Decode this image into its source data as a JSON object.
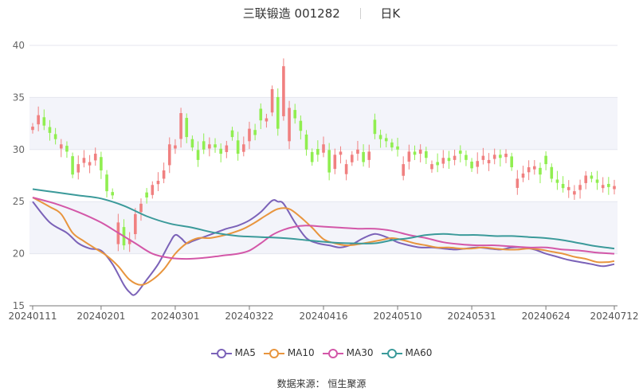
{
  "header": {
    "title": "三联锻造 001282",
    "period": "日K"
  },
  "source_label": "数据来源：  恒生聚源",
  "colors": {
    "up": "#f08080",
    "down": "#90ee50",
    "MA5": "#7b62b8",
    "MA10": "#e8953e",
    "MA30": "#d357a8",
    "MA60": "#3b9a9a"
  },
  "chart_data": {
    "type": "candlestick",
    "y_axis": {
      "min": 15,
      "max": 40,
      "ticks": [
        15,
        20,
        25,
        30,
        35,
        40
      ]
    },
    "x_tick_labels": [
      "20240111",
      "20240201",
      "20240301",
      "20240322",
      "20240416",
      "20240510",
      "20240531",
      "20240624",
      "20240712"
    ],
    "x_tick_index": [
      0,
      12,
      25,
      38,
      51,
      64,
      77,
      90,
      102
    ],
    "legend": [
      "MA5",
      "MA10",
      "MA30",
      "MA60"
    ],
    "closes": [
      32.2,
      33.3,
      32.3,
      31.6,
      31.0,
      30.5,
      29.8,
      27.6,
      28.6,
      29.2,
      28.8,
      29.6,
      28.0,
      26.0,
      25.6,
      23.0,
      20.8,
      21.4,
      23.8,
      24.8,
      25.4,
      26.6,
      27.0,
      28.0,
      30.5,
      30.4,
      33.5,
      31.2,
      30.2,
      29.0,
      30.0,
      30.5,
      30.2,
      29.6,
      30.4,
      31.2,
      29.6,
      30.5,
      32.0,
      31.4,
      32.8,
      33.0,
      35.8,
      32.0,
      38.0,
      34.0,
      33.0,
      31.8,
      30.0,
      28.8,
      29.5,
      30.5,
      27.8,
      29.5,
      29.8,
      28.6,
      29.5,
      30.0,
      28.8,
      29.8,
      31.5,
      31.0,
      30.8,
      30.2,
      30.0,
      28.6,
      29.8,
      29.5,
      30.0,
      29.2,
      28.6,
      28.5,
      29.2,
      28.9,
      29.4,
      29.6,
      29.0,
      28.2,
      28.9,
      29.4,
      29.0,
      29.5,
      29.2,
      29.6,
      28.3,
      27.2,
      27.7,
      28.3,
      28.4,
      27.6,
      28.6,
      27.2,
      26.8,
      26.3,
      26.4,
      26.0,
      26.6,
      27.5,
      27.2,
      26.8,
      26.6,
      26.4,
      26.5
    ],
    "ma_curves": {
      "MA5": [
        [
          0,
          25.0
        ],
        [
          3,
          23.0
        ],
        [
          6,
          22.0
        ],
        [
          8,
          21.0
        ],
        [
          10,
          20.5
        ],
        [
          12,
          20.3
        ],
        [
          14,
          19.0
        ],
        [
          16,
          17.0
        ],
        [
          17,
          16.3
        ],
        [
          18,
          16.1
        ],
        [
          20,
          17.5
        ],
        [
          22,
          19.0
        ],
        [
          24,
          21.0
        ],
        [
          25,
          21.8
        ],
        [
          26,
          21.5
        ],
        [
          27,
          21.0
        ],
        [
          28,
          21.2
        ],
        [
          30,
          21.6
        ],
        [
          32,
          22.0
        ],
        [
          34,
          22.4
        ],
        [
          36,
          22.7
        ],
        [
          38,
          23.2
        ],
        [
          40,
          24.0
        ],
        [
          42,
          25.1
        ],
        [
          43,
          25.0
        ],
        [
          44,
          24.8
        ],
        [
          46,
          23.0
        ],
        [
          48,
          21.5
        ],
        [
          50,
          21.0
        ],
        [
          52,
          20.8
        ],
        [
          54,
          20.6
        ],
        [
          56,
          20.9
        ],
        [
          58,
          21.5
        ],
        [
          60,
          21.9
        ],
        [
          62,
          21.6
        ],
        [
          64,
          21.1
        ],
        [
          66,
          20.8
        ],
        [
          68,
          20.6
        ],
        [
          70,
          20.6
        ],
        [
          72,
          20.5
        ],
        [
          74,
          20.4
        ],
        [
          76,
          20.5
        ],
        [
          78,
          20.6
        ],
        [
          80,
          20.5
        ],
        [
          82,
          20.4
        ],
        [
          84,
          20.6
        ],
        [
          86,
          20.6
        ],
        [
          88,
          20.4
        ],
        [
          90,
          20.0
        ],
        [
          92,
          19.7
        ],
        [
          94,
          19.4
        ],
        [
          96,
          19.2
        ],
        [
          98,
          19.0
        ],
        [
          100,
          18.8
        ],
        [
          102,
          19.0
        ]
      ],
      "MA10": [
        [
          0,
          25.4
        ],
        [
          3,
          24.5
        ],
        [
          5,
          23.8
        ],
        [
          7,
          22.0
        ],
        [
          9,
          21.2
        ],
        [
          11,
          20.5
        ],
        [
          13,
          19.8
        ],
        [
          15,
          18.8
        ],
        [
          17,
          17.5
        ],
        [
          19,
          17.0
        ],
        [
          21,
          17.5
        ],
        [
          23,
          18.5
        ],
        [
          25,
          20.0
        ],
        [
          27,
          21.0
        ],
        [
          29,
          21.5
        ],
        [
          31,
          21.5
        ],
        [
          33,
          21.7
        ],
        [
          35,
          22.0
        ],
        [
          37,
          22.4
        ],
        [
          39,
          23.0
        ],
        [
          41,
          23.7
        ],
        [
          43,
          24.3
        ],
        [
          45,
          24.3
        ],
        [
          47,
          23.5
        ],
        [
          49,
          22.5
        ],
        [
          51,
          21.4
        ],
        [
          53,
          21.0
        ],
        [
          55,
          20.8
        ],
        [
          57,
          20.9
        ],
        [
          59,
          21.1
        ],
        [
          61,
          21.3
        ],
        [
          63,
          21.5
        ],
        [
          65,
          21.3
        ],
        [
          67,
          21.0
        ],
        [
          69,
          20.8
        ],
        [
          71,
          20.6
        ],
        [
          73,
          20.6
        ],
        [
          75,
          20.5
        ],
        [
          77,
          20.5
        ],
        [
          79,
          20.6
        ],
        [
          81,
          20.5
        ],
        [
          83,
          20.4
        ],
        [
          85,
          20.4
        ],
        [
          87,
          20.5
        ],
        [
          89,
          20.4
        ],
        [
          91,
          20.2
        ],
        [
          93,
          20.0
        ],
        [
          95,
          19.7
        ],
        [
          97,
          19.5
        ],
        [
          99,
          19.2
        ],
        [
          101,
          19.2
        ],
        [
          102,
          19.3
        ]
      ],
      "MA30": [
        [
          0,
          25.4
        ],
        [
          4,
          24.8
        ],
        [
          8,
          24.0
        ],
        [
          12,
          23.0
        ],
        [
          15,
          22.0
        ],
        [
          18,
          21.0
        ],
        [
          21,
          20.0
        ],
        [
          24,
          19.6
        ],
        [
          27,
          19.5
        ],
        [
          30,
          19.6
        ],
        [
          33,
          19.8
        ],
        [
          36,
          20.0
        ],
        [
          38,
          20.3
        ],
        [
          40,
          21.0
        ],
        [
          42,
          21.8
        ],
        [
          44,
          22.3
        ],
        [
          46,
          22.6
        ],
        [
          48,
          22.7
        ],
        [
          51,
          22.6
        ],
        [
          54,
          22.5
        ],
        [
          57,
          22.4
        ],
        [
          60,
          22.4
        ],
        [
          63,
          22.2
        ],
        [
          66,
          21.8
        ],
        [
          69,
          21.5
        ],
        [
          72,
          21.1
        ],
        [
          75,
          20.9
        ],
        [
          78,
          20.8
        ],
        [
          81,
          20.8
        ],
        [
          84,
          20.7
        ],
        [
          87,
          20.6
        ],
        [
          90,
          20.6
        ],
        [
          93,
          20.4
        ],
        [
          96,
          20.3
        ],
        [
          99,
          20.1
        ],
        [
          102,
          20.0
        ]
      ],
      "MA60": [
        [
          0,
          26.2
        ],
        [
          4,
          25.9
        ],
        [
          8,
          25.6
        ],
        [
          12,
          25.3
        ],
        [
          16,
          24.6
        ],
        [
          20,
          23.6
        ],
        [
          24,
          22.9
        ],
        [
          28,
          22.5
        ],
        [
          32,
          22.0
        ],
        [
          36,
          21.7
        ],
        [
          40,
          21.6
        ],
        [
          44,
          21.5
        ],
        [
          48,
          21.3
        ],
        [
          52,
          21.1
        ],
        [
          56,
          21.0
        ],
        [
          60,
          21.0
        ],
        [
          63,
          21.3
        ],
        [
          66,
          21.5
        ],
        [
          69,
          21.8
        ],
        [
          72,
          21.9
        ],
        [
          75,
          21.8
        ],
        [
          78,
          21.8
        ],
        [
          81,
          21.7
        ],
        [
          84,
          21.7
        ],
        [
          87,
          21.6
        ],
        [
          90,
          21.5
        ],
        [
          93,
          21.3
        ],
        [
          96,
          21.0
        ],
        [
          99,
          20.7
        ],
        [
          102,
          20.5
        ]
      ]
    }
  }
}
